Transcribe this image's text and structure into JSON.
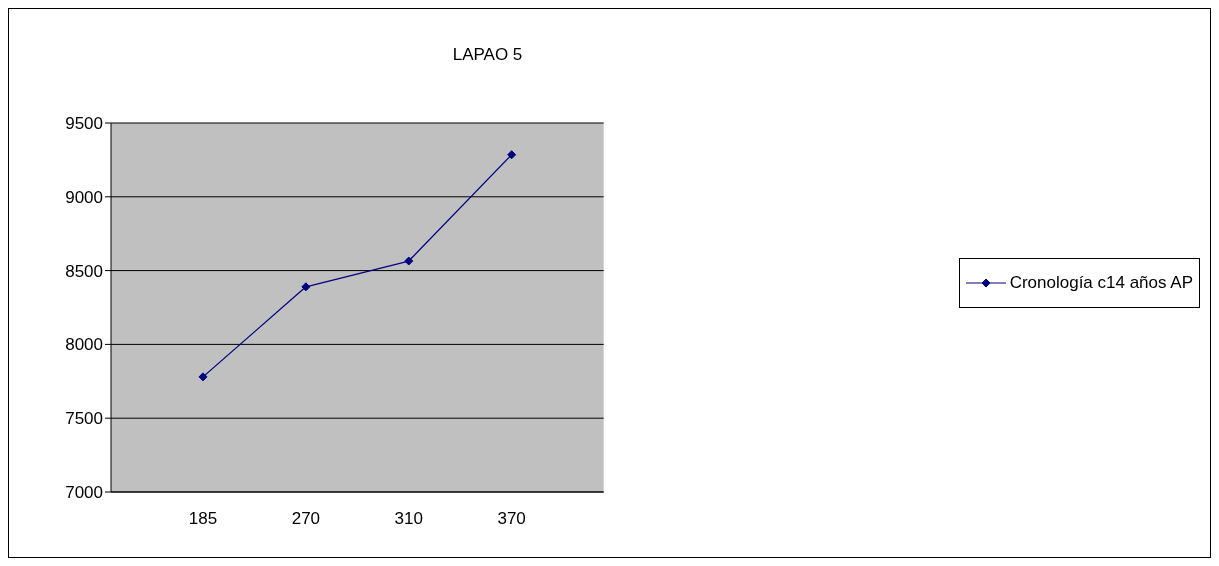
{
  "chart_data": {
    "type": "line",
    "title": "LAPAO 5",
    "categories": [
      "185",
      "270",
      "310",
      "370"
    ],
    "series": [
      {
        "name": "Cronología c14 años AP",
        "color": "#000080",
        "values": [
          7780,
          8390,
          8565,
          9285
        ]
      }
    ],
    "ylim": [
      7000,
      9500
    ],
    "yticks": [
      7000,
      7500,
      8000,
      8500,
      9000,
      9500
    ],
    "grid": "y",
    "legend": "right",
    "marker": "diamond",
    "line_style": "solid"
  }
}
